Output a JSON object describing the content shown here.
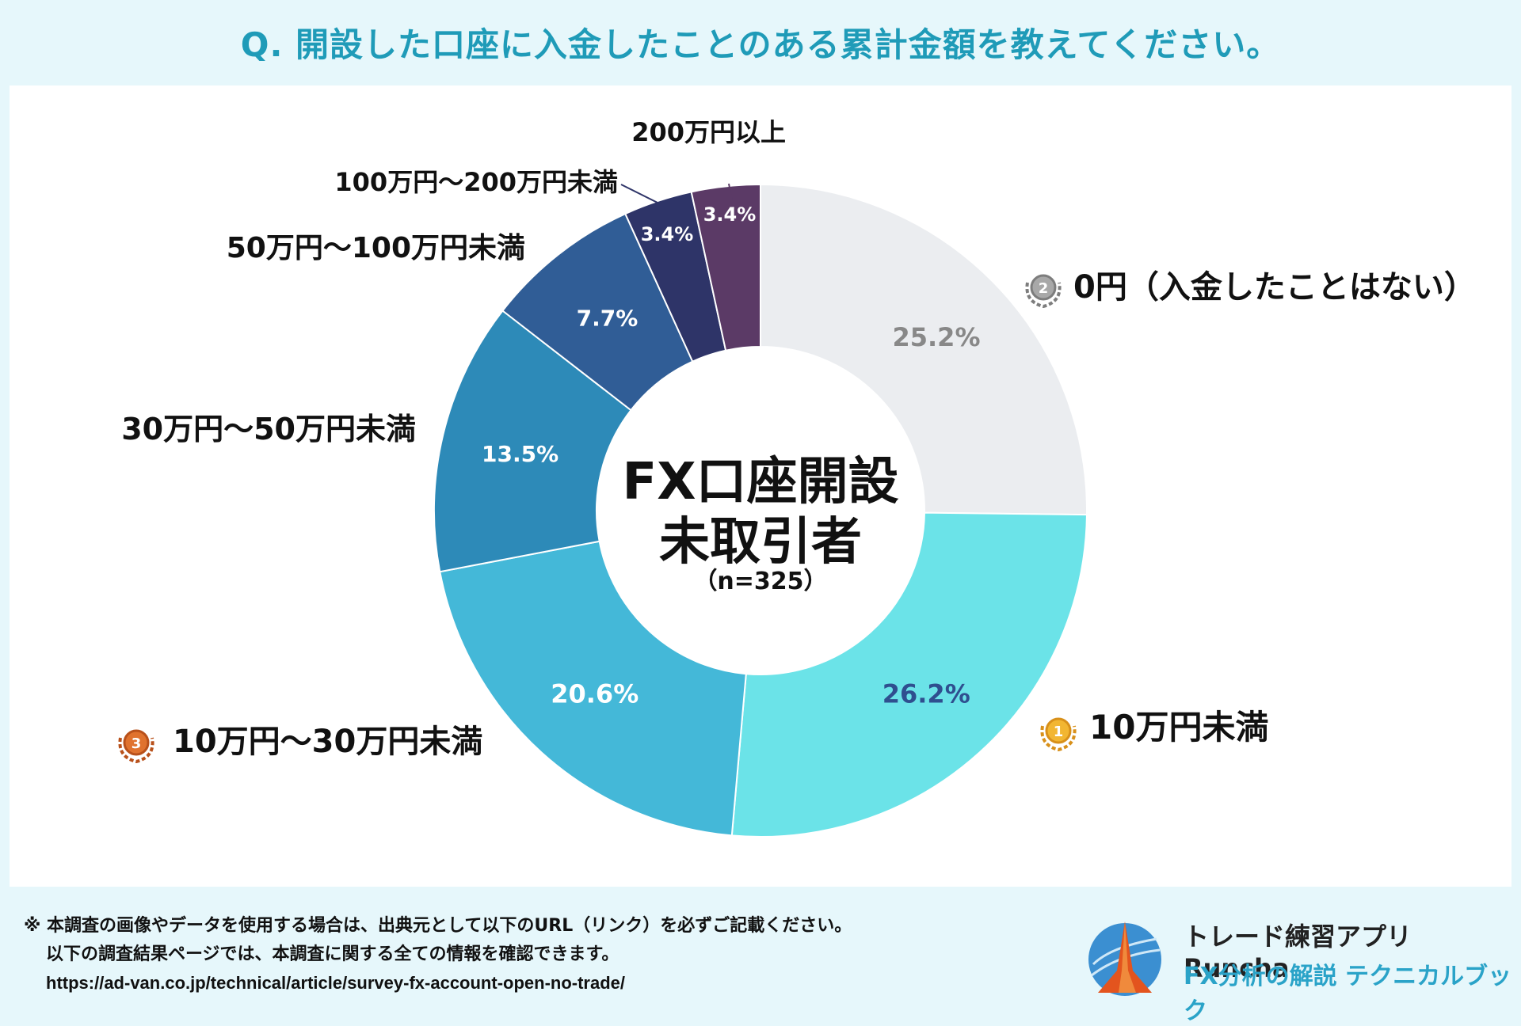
{
  "title": "Q. 開設した口座に入金したことのある累計金額を教えてください。",
  "chart_data": {
    "type": "donut",
    "center_title_line1": "FX口座開設",
    "center_title_line2": "未取引者",
    "center_sub": "（n=325）",
    "unit": "%",
    "slices": [
      {
        "label": "0円（入金したことはない）",
        "value": 25.2,
        "pct_text": "25.2%",
        "color": "#ebedf0",
        "text_color": "#888888",
        "medal": "2"
      },
      {
        "label": "10万円未満",
        "value": 26.2,
        "pct_text": "26.2%",
        "color": "#6be3e8",
        "text_color": "#2f4f8f",
        "medal": "1"
      },
      {
        "label": "10万円〜30万円未満",
        "value": 20.6,
        "pct_text": "20.6%",
        "color": "#44b8d8",
        "text_color": "#ffffff",
        "medal": "3"
      },
      {
        "label": "30万円〜50万円未満",
        "value": 13.5,
        "pct_text": "13.5%",
        "color": "#2d8ab8",
        "text_color": "#ffffff",
        "medal": ""
      },
      {
        "label": "50万円〜100万円未満",
        "value": 7.7,
        "pct_text": "7.7%",
        "color": "#305d96",
        "text_color": "#ffffff",
        "medal": ""
      },
      {
        "label": "100万円〜200万円未満",
        "value": 3.4,
        "pct_text": "3.4%",
        "color": "#2e3468",
        "text_color": "#ffffff",
        "medal": ""
      },
      {
        "label": "200万円以上",
        "value": 3.4,
        "pct_text": "3.4%",
        "color": "#5b3a66",
        "text_color": "#ffffff",
        "medal": ""
      }
    ]
  },
  "footer": {
    "note_line1": "※ 本調査の画像やデータを使用する場合は、出典元として以下のURL（リンク）を必ずご記載ください。",
    "note_line2": "以下の調査結果ページでは、本調査に関する全ての情報を確認できます。",
    "url": "https://ad-van.co.jp/technical/article/survey-fx-account-open-no-trade/"
  },
  "brand": {
    "line1": "トレード練習アプリ  Runcha",
    "line2": "FX分析の解説  テクニカルブック"
  }
}
